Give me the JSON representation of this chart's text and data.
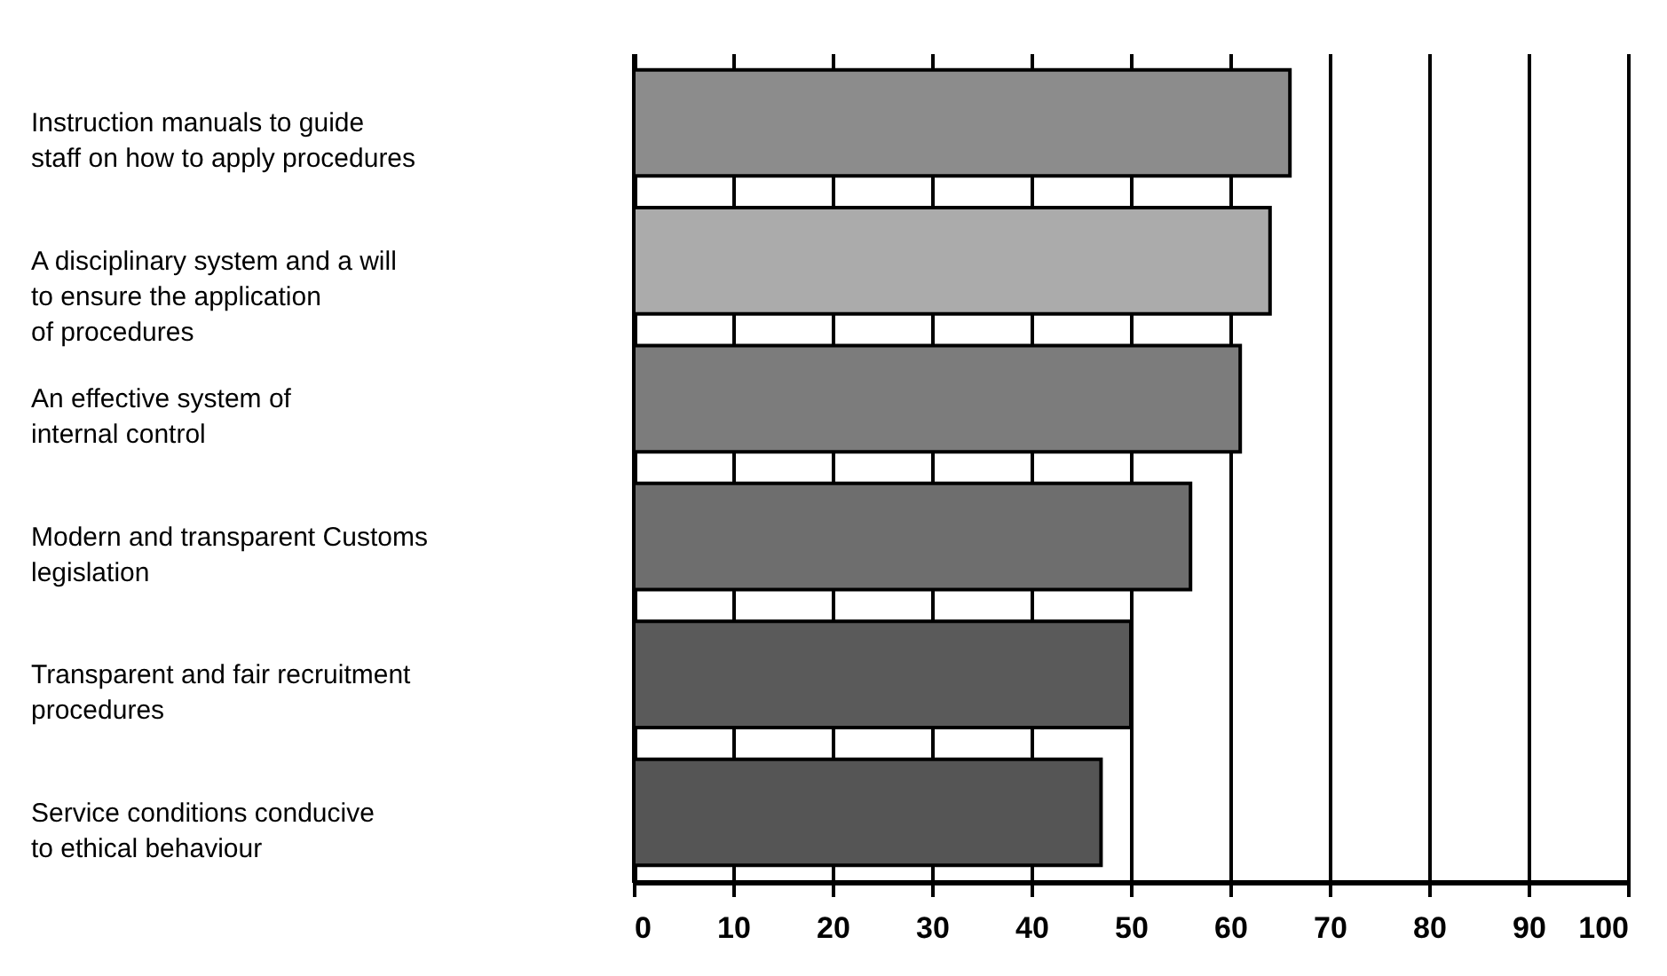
{
  "chart_data": {
    "type": "bar",
    "orientation": "horizontal",
    "categories": [
      "Instruction manuals to guide\nstaff on how  to apply procedures",
      "A disciplinary system and a will\nto ensure the application\nof procedures",
      "An effective system of\ninternal control",
      "Modern and transparent Customs\nlegislation",
      "Transparent and fair recruitment\nprocedures",
      "Service conditions conducive\nto ethical behaviour"
    ],
    "values": [
      66,
      64,
      61,
      56,
      50,
      47
    ],
    "colors": [
      "#8c8c8c",
      "#ababab",
      "#7c7c7c",
      "#6e6e6e",
      "#5a5a5a",
      "#555555"
    ],
    "xlim": [
      0,
      100
    ],
    "xticks": [
      0,
      10,
      20,
      30,
      40,
      50,
      60,
      70,
      80,
      90,
      100
    ],
    "grid": "x"
  }
}
